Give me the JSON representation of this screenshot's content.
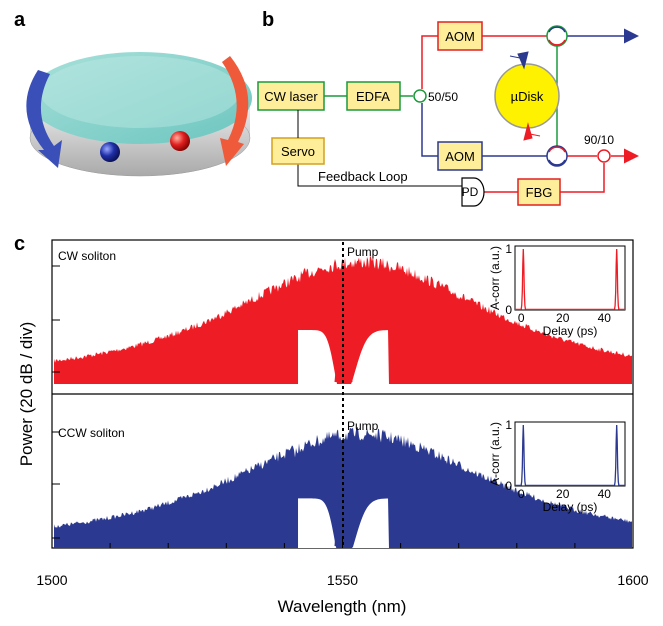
{
  "panels": {
    "a": "a",
    "b": "b",
    "c": "c"
  },
  "schematic": {
    "cw_laser": "CW laser",
    "edfa": "EDFA",
    "splitter": "50/50",
    "aom_top": "AOM",
    "aom_bottom": "AOM",
    "resonator": "µDisk",
    "tap": "90/10",
    "servo": "Servo",
    "feedback": "Feedback Loop",
    "pd": "PD",
    "fbg": "FBG"
  },
  "colors": {
    "cw": "#ee1c25",
    "ccw": "#2b3990",
    "green": "#1a9a3c",
    "box_fill": "#ffee99",
    "box_stroke": "#d4a020",
    "aom_fill": "#ffee99",
    "aom_stroke": "#e02020",
    "disk": "#fff200"
  },
  "chart_data": {
    "type": "area",
    "xlabel": "Wavelength (nm)",
    "ylabel": "Power (20 dB / div)",
    "xlim": [
      1500,
      1600
    ],
    "x_ticks": [
      1500,
      1550,
      1600
    ],
    "pump_label": "Pump",
    "pump_wavelength": 1550,
    "series": [
      {
        "name": "CW soliton",
        "color": "#ee1c25",
        "peak_wavelength": 1553,
        "span": [
          1502,
          1600
        ],
        "dispersive_wave": 1542
      },
      {
        "name": "CCW soliton",
        "color": "#2b3990",
        "peak_wavelength": 1553,
        "span": [
          1502,
          1600
        ],
        "dispersive_wave": 1542
      }
    ],
    "inset": {
      "xlabel": "Delay (ps)",
      "ylabel": "A-corr (a.u.)",
      "xlim": [
        -3,
        50
      ],
      "ylim": [
        0,
        1.05
      ],
      "x_ticks": [
        0,
        20,
        40
      ],
      "y_ticks": [
        0,
        1
      ],
      "peaks": [
        1,
        46
      ]
    }
  }
}
